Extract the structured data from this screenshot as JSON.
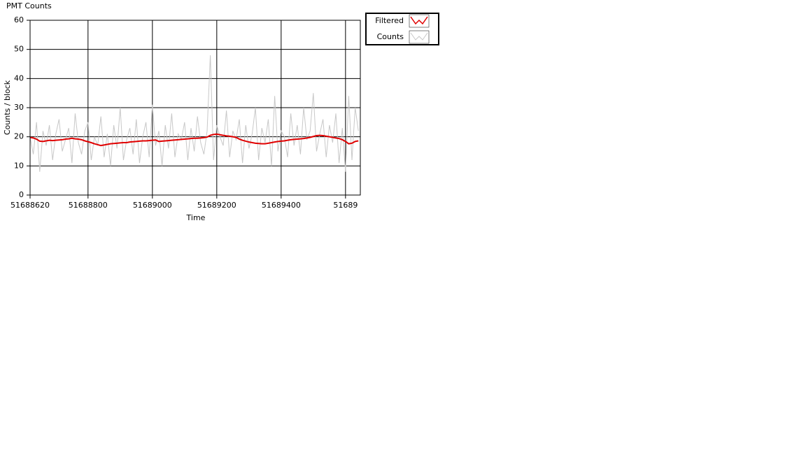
{
  "chart_data": {
    "type": "line",
    "title": "PMT Counts",
    "xlabel": "Time",
    "ylabel": "Counts / block",
    "x": [
      51688620,
      51688630,
      51688640,
      51688650,
      51688660,
      51688670,
      51688680,
      51688690,
      51688700,
      51688710,
      51688720,
      51688730,
      51688740,
      51688750,
      51688760,
      51688770,
      51688780,
      51688790,
      51688800,
      51688810,
      51688820,
      51688830,
      51688840,
      51688850,
      51688860,
      51688870,
      51688880,
      51688890,
      51688900,
      51688910,
      51688920,
      51688930,
      51688940,
      51688950,
      51688960,
      51688970,
      51688980,
      51688990,
      51689000,
      51689010,
      51689020,
      51689030,
      51689040,
      51689050,
      51689060,
      51689070,
      51689080,
      51689090,
      51689100,
      51689110,
      51689120,
      51689130,
      51689140,
      51689150,
      51689160,
      51689170,
      51689180,
      51689190,
      51689200,
      51689210,
      51689220,
      51689230,
      51689240,
      51689250,
      51689260,
      51689270,
      51689280,
      51689290,
      51689300,
      51689310,
      51689320,
      51689330,
      51689340,
      51689350,
      51689360,
      51689370,
      51689380,
      51689390,
      51689400,
      51689410,
      51689420,
      51689430,
      51689440,
      51689450,
      51689460,
      51689470,
      51689480,
      51689490,
      51689500,
      51689510,
      51689520,
      51689530,
      51689540,
      51689550,
      51689560,
      51689570,
      51689580,
      51689590,
      51689600,
      51689610,
      51689620,
      51689630,
      51689640
    ],
    "series": [
      {
        "name": "Filtered",
        "color": "#e00000",
        "values": [
          19.8,
          19.6,
          19.2,
          18.5,
          18.4,
          18.6,
          18.8,
          18.7,
          18.8,
          18.9,
          19.0,
          19.2,
          19.3,
          19.5,
          19.3,
          19.2,
          19.0,
          18.6,
          18.3,
          18.0,
          17.6,
          17.3,
          17.0,
          17.2,
          17.4,
          17.6,
          17.7,
          17.8,
          17.9,
          18.0,
          18.0,
          18.2,
          18.3,
          18.4,
          18.5,
          18.6,
          18.6,
          18.7,
          18.8,
          18.9,
          18.4,
          18.5,
          18.6,
          18.7,
          18.8,
          18.9,
          19.0,
          19.1,
          19.2,
          19.3,
          19.4,
          19.5,
          19.5,
          19.6,
          19.7,
          19.9,
          20.5,
          20.8,
          20.9,
          20.7,
          20.5,
          20.3,
          20.2,
          20.0,
          19.8,
          19.2,
          18.8,
          18.5,
          18.2,
          18.0,
          17.8,
          17.7,
          17.6,
          17.6,
          17.8,
          18.0,
          18.2,
          18.4,
          18.5,
          18.6,
          18.8,
          19.0,
          19.1,
          19.2,
          19.3,
          19.4,
          19.6,
          19.8,
          20.1,
          20.4,
          20.5,
          20.4,
          20.2,
          20.0,
          19.8,
          19.6,
          19.4,
          19.0,
          18.4,
          17.6,
          17.8,
          18.4,
          18.6
        ]
      },
      {
        "name": "Counts",
        "color": "#c8c8c8",
        "values": [
          20,
          14,
          25,
          8,
          22,
          17,
          24,
          12,
          21,
          26,
          15,
          19,
          23,
          11,
          28,
          18,
          14,
          22,
          25,
          12,
          20,
          17,
          27,
          13,
          21,
          10,
          24,
          16,
          30,
          12,
          19,
          23,
          14,
          26,
          11,
          20,
          25,
          13,
          31,
          17,
          22,
          10,
          24,
          16,
          28,
          13,
          21,
          19,
          25,
          12,
          23,
          15,
          27,
          18,
          14,
          22,
          48,
          12,
          24,
          20,
          17,
          29,
          13,
          22,
          19,
          26,
          11,
          24,
          16,
          21,
          30,
          12,
          23,
          18,
          26,
          10,
          34,
          15,
          22,
          20,
          13,
          28,
          17,
          24,
          14,
          30,
          19,
          22,
          35,
          15,
          21,
          26,
          13,
          24,
          18,
          28,
          11,
          23,
          8,
          34,
          12,
          30,
          22
        ]
      }
    ],
    "xlim": [
      51688620,
      51689646
    ],
    "ylim": [
      0,
      60
    ],
    "xticks": [
      51688620,
      51688800,
      51689000,
      51689200,
      51689400,
      {
        "value": 51689600,
        "label": "51689"
      }
    ],
    "yticks": [
      0,
      10,
      20,
      30,
      40,
      50,
      60
    ],
    "grid": true
  }
}
